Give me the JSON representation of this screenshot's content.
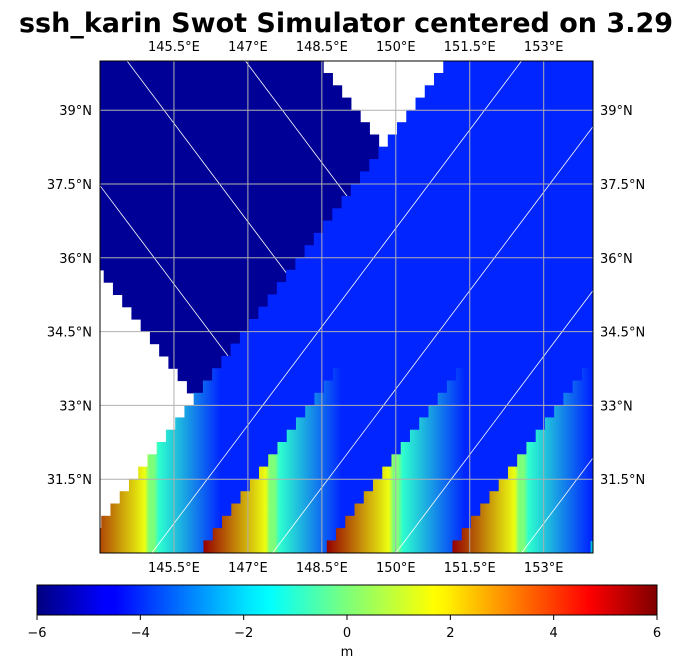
{
  "chart_data": {
    "type": "heatmap",
    "title": "ssh_karin Swot Simulator centered on 3.29",
    "map": {
      "lon_range": [
        144,
        154
      ],
      "lat_range": [
        30,
        40
      ],
      "grid": true,
      "lon_ticks": [
        145.5,
        147,
        148.5,
        150,
        151.5,
        153
      ],
      "lon_tick_labels": [
        "145.5°E",
        "147°E",
        "148.5°E",
        "150°E",
        "151.5°E",
        "153°E"
      ],
      "lat_ticks": [
        31.5,
        33,
        34.5,
        36,
        37.5,
        39
      ],
      "lat_tick_labels": [
        "31.5°N",
        "33°N",
        "34.5°N",
        "36°N",
        "37.5°N",
        "39°N"
      ]
    },
    "swaths": {
      "ascending_bottom_lon": [
        145.05,
        147.5,
        150.0,
        152.55
      ],
      "descending_bottom_lon": [
        149.6,
        152.05,
        154.45
      ],
      "half_width_deg": 1.4,
      "gap_half_width_deg": 0.05
    },
    "colorbar": {
      "colormap": "jet",
      "label": "m",
      "range": [
        -6,
        6
      ],
      "ticks": [
        -6,
        -4,
        -2,
        0,
        2,
        4,
        6
      ],
      "tick_labels": [
        "−6",
        "−4",
        "−2",
        "0",
        "2",
        "4",
        "6"
      ]
    }
  }
}
